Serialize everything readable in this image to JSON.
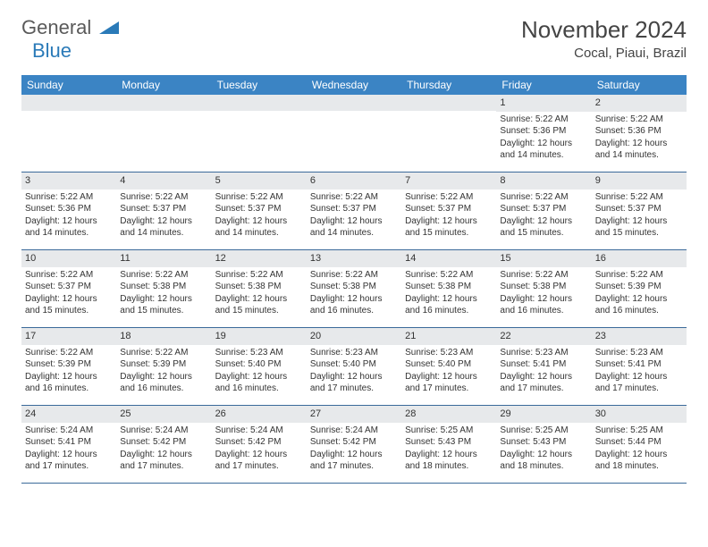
{
  "logo": {
    "word1": "General",
    "word2": "Blue"
  },
  "title": "November 2024",
  "location": "Cocal, Piaui, Brazil",
  "colors": {
    "header_bg": "#3b84c4",
    "header_text": "#ffffff",
    "daynum_bg": "#e7e9eb",
    "border": "#3b6a9a",
    "logo_gray": "#5a5a5a",
    "logo_blue": "#2a7ab8"
  },
  "day_names": [
    "Sunday",
    "Monday",
    "Tuesday",
    "Wednesday",
    "Thursday",
    "Friday",
    "Saturday"
  ],
  "weeks": [
    [
      {
        "n": "",
        "sunrise": "",
        "sunset": "",
        "daylight": ""
      },
      {
        "n": "",
        "sunrise": "",
        "sunset": "",
        "daylight": ""
      },
      {
        "n": "",
        "sunrise": "",
        "sunset": "",
        "daylight": ""
      },
      {
        "n": "",
        "sunrise": "",
        "sunset": "",
        "daylight": ""
      },
      {
        "n": "",
        "sunrise": "",
        "sunset": "",
        "daylight": ""
      },
      {
        "n": "1",
        "sunrise": "Sunrise: 5:22 AM",
        "sunset": "Sunset: 5:36 PM",
        "daylight": "Daylight: 12 hours and 14 minutes."
      },
      {
        "n": "2",
        "sunrise": "Sunrise: 5:22 AM",
        "sunset": "Sunset: 5:36 PM",
        "daylight": "Daylight: 12 hours and 14 minutes."
      }
    ],
    [
      {
        "n": "3",
        "sunrise": "Sunrise: 5:22 AM",
        "sunset": "Sunset: 5:36 PM",
        "daylight": "Daylight: 12 hours and 14 minutes."
      },
      {
        "n": "4",
        "sunrise": "Sunrise: 5:22 AM",
        "sunset": "Sunset: 5:37 PM",
        "daylight": "Daylight: 12 hours and 14 minutes."
      },
      {
        "n": "5",
        "sunrise": "Sunrise: 5:22 AM",
        "sunset": "Sunset: 5:37 PM",
        "daylight": "Daylight: 12 hours and 14 minutes."
      },
      {
        "n": "6",
        "sunrise": "Sunrise: 5:22 AM",
        "sunset": "Sunset: 5:37 PM",
        "daylight": "Daylight: 12 hours and 14 minutes."
      },
      {
        "n": "7",
        "sunrise": "Sunrise: 5:22 AM",
        "sunset": "Sunset: 5:37 PM",
        "daylight": "Daylight: 12 hours and 15 minutes."
      },
      {
        "n": "8",
        "sunrise": "Sunrise: 5:22 AM",
        "sunset": "Sunset: 5:37 PM",
        "daylight": "Daylight: 12 hours and 15 minutes."
      },
      {
        "n": "9",
        "sunrise": "Sunrise: 5:22 AM",
        "sunset": "Sunset: 5:37 PM",
        "daylight": "Daylight: 12 hours and 15 minutes."
      }
    ],
    [
      {
        "n": "10",
        "sunrise": "Sunrise: 5:22 AM",
        "sunset": "Sunset: 5:37 PM",
        "daylight": "Daylight: 12 hours and 15 minutes."
      },
      {
        "n": "11",
        "sunrise": "Sunrise: 5:22 AM",
        "sunset": "Sunset: 5:38 PM",
        "daylight": "Daylight: 12 hours and 15 minutes."
      },
      {
        "n": "12",
        "sunrise": "Sunrise: 5:22 AM",
        "sunset": "Sunset: 5:38 PM",
        "daylight": "Daylight: 12 hours and 15 minutes."
      },
      {
        "n": "13",
        "sunrise": "Sunrise: 5:22 AM",
        "sunset": "Sunset: 5:38 PM",
        "daylight": "Daylight: 12 hours and 16 minutes."
      },
      {
        "n": "14",
        "sunrise": "Sunrise: 5:22 AM",
        "sunset": "Sunset: 5:38 PM",
        "daylight": "Daylight: 12 hours and 16 minutes."
      },
      {
        "n": "15",
        "sunrise": "Sunrise: 5:22 AM",
        "sunset": "Sunset: 5:38 PM",
        "daylight": "Daylight: 12 hours and 16 minutes."
      },
      {
        "n": "16",
        "sunrise": "Sunrise: 5:22 AM",
        "sunset": "Sunset: 5:39 PM",
        "daylight": "Daylight: 12 hours and 16 minutes."
      }
    ],
    [
      {
        "n": "17",
        "sunrise": "Sunrise: 5:22 AM",
        "sunset": "Sunset: 5:39 PM",
        "daylight": "Daylight: 12 hours and 16 minutes."
      },
      {
        "n": "18",
        "sunrise": "Sunrise: 5:22 AM",
        "sunset": "Sunset: 5:39 PM",
        "daylight": "Daylight: 12 hours and 16 minutes."
      },
      {
        "n": "19",
        "sunrise": "Sunrise: 5:23 AM",
        "sunset": "Sunset: 5:40 PM",
        "daylight": "Daylight: 12 hours and 16 minutes."
      },
      {
        "n": "20",
        "sunrise": "Sunrise: 5:23 AM",
        "sunset": "Sunset: 5:40 PM",
        "daylight": "Daylight: 12 hours and 17 minutes."
      },
      {
        "n": "21",
        "sunrise": "Sunrise: 5:23 AM",
        "sunset": "Sunset: 5:40 PM",
        "daylight": "Daylight: 12 hours and 17 minutes."
      },
      {
        "n": "22",
        "sunrise": "Sunrise: 5:23 AM",
        "sunset": "Sunset: 5:41 PM",
        "daylight": "Daylight: 12 hours and 17 minutes."
      },
      {
        "n": "23",
        "sunrise": "Sunrise: 5:23 AM",
        "sunset": "Sunset: 5:41 PM",
        "daylight": "Daylight: 12 hours and 17 minutes."
      }
    ],
    [
      {
        "n": "24",
        "sunrise": "Sunrise: 5:24 AM",
        "sunset": "Sunset: 5:41 PM",
        "daylight": "Daylight: 12 hours and 17 minutes."
      },
      {
        "n": "25",
        "sunrise": "Sunrise: 5:24 AM",
        "sunset": "Sunset: 5:42 PM",
        "daylight": "Daylight: 12 hours and 17 minutes."
      },
      {
        "n": "26",
        "sunrise": "Sunrise: 5:24 AM",
        "sunset": "Sunset: 5:42 PM",
        "daylight": "Daylight: 12 hours and 17 minutes."
      },
      {
        "n": "27",
        "sunrise": "Sunrise: 5:24 AM",
        "sunset": "Sunset: 5:42 PM",
        "daylight": "Daylight: 12 hours and 17 minutes."
      },
      {
        "n": "28",
        "sunrise": "Sunrise: 5:25 AM",
        "sunset": "Sunset: 5:43 PM",
        "daylight": "Daylight: 12 hours and 18 minutes."
      },
      {
        "n": "29",
        "sunrise": "Sunrise: 5:25 AM",
        "sunset": "Sunset: 5:43 PM",
        "daylight": "Daylight: 12 hours and 18 minutes."
      },
      {
        "n": "30",
        "sunrise": "Sunrise: 5:25 AM",
        "sunset": "Sunset: 5:44 PM",
        "daylight": "Daylight: 12 hours and 18 minutes."
      }
    ]
  ]
}
